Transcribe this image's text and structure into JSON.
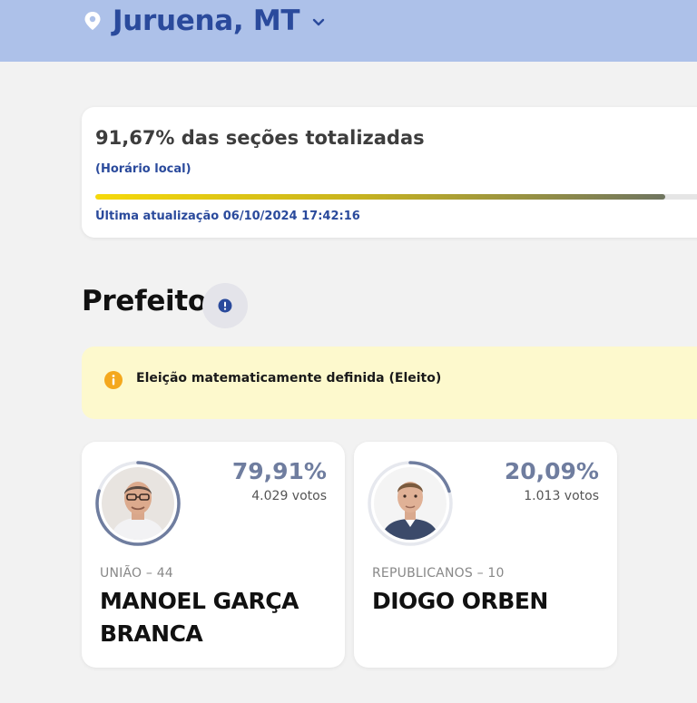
{
  "header": {
    "location": "Juruena, MT",
    "icons": {
      "location": "map-pin-icon",
      "dropdown": "chevron-down-icon"
    },
    "background": "#adc1e9",
    "accent": "#2a4a9c"
  },
  "progress": {
    "percent_text": "91,67% das seções totalizadas",
    "percent_value": 91.67,
    "local_time_label": "(Horário local)",
    "last_update": "Última atualização 06/10/2024 17:42:16"
  },
  "section": {
    "title": "Prefeito",
    "info_icon": "exclamation-info-icon"
  },
  "alert": {
    "text": "Eleição matematicamente definida (Eleito)",
    "icon": "info-circle-icon",
    "background": "#fdf9cd",
    "icon_color": "#f4a81d"
  },
  "candidates": [
    {
      "percent": "79,91%",
      "percent_value": 79.91,
      "votes": "4.029 votos",
      "party": "UNIÃO – 44",
      "name": "MANOEL GARÇA BRANCA",
      "photo_icon": "candidate-photo"
    },
    {
      "percent": "20,09%",
      "percent_value": 20.09,
      "votes": "1.013 votos",
      "party": "REPUBLICANOS – 10",
      "name": "DIOGO ORBEN",
      "photo_icon": "candidate-photo"
    }
  ]
}
